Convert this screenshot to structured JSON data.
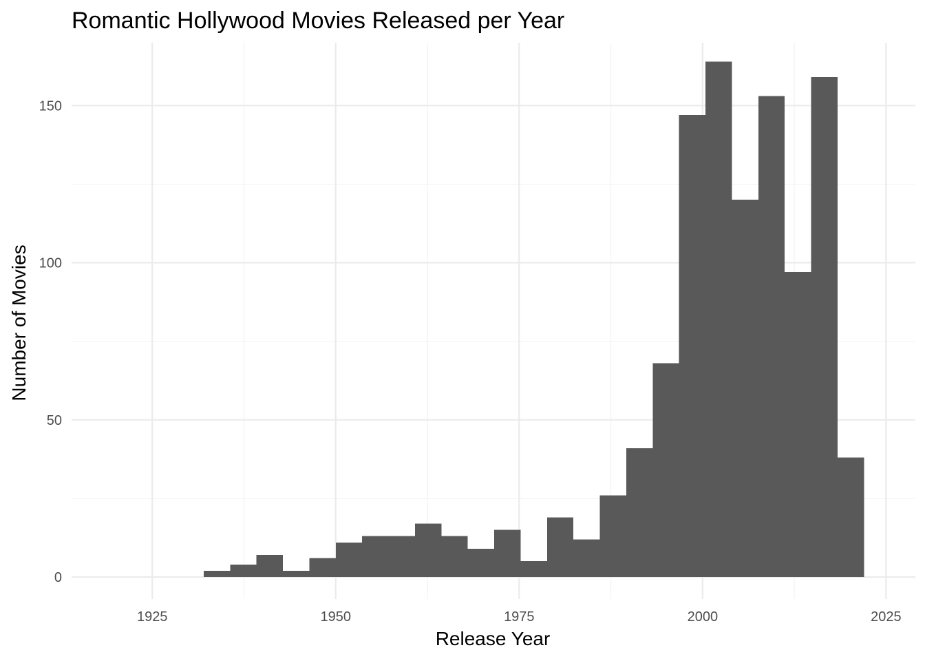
{
  "chart_data": {
    "type": "bar",
    "subtype": "histogram",
    "title": "Romantic Hollywood Movies Released per Year",
    "xlabel": "Release Year",
    "ylabel": "Number of Movies",
    "xlim": [
      1914,
      2029
    ],
    "ylim": [
      -7,
      170
    ],
    "x_ticks": [
      1925,
      1950,
      1975,
      2000,
      2025
    ],
    "y_ticks": [
      0,
      50,
      100,
      150
    ],
    "bin_width": 3.6,
    "bar_color": "#595959",
    "grid": true,
    "bins": [
      {
        "start": 1932.0,
        "end": 1935.6,
        "count": 2
      },
      {
        "start": 1935.6,
        "end": 1939.2,
        "count": 4
      },
      {
        "start": 1939.2,
        "end": 1942.8,
        "count": 7
      },
      {
        "start": 1942.8,
        "end": 1946.4,
        "count": 2
      },
      {
        "start": 1946.4,
        "end": 1950.0,
        "count": 6
      },
      {
        "start": 1950.0,
        "end": 1953.6,
        "count": 11
      },
      {
        "start": 1953.6,
        "end": 1957.2,
        "count": 13
      },
      {
        "start": 1957.2,
        "end": 1960.8,
        "count": 13
      },
      {
        "start": 1960.8,
        "end": 1964.4,
        "count": 17
      },
      {
        "start": 1964.4,
        "end": 1968.0,
        "count": 13
      },
      {
        "start": 1968.0,
        "end": 1971.6,
        "count": 9
      },
      {
        "start": 1971.6,
        "end": 1975.2,
        "count": 15
      },
      {
        "start": 1975.2,
        "end": 1978.8,
        "count": 5
      },
      {
        "start": 1978.8,
        "end": 1982.4,
        "count": 19
      },
      {
        "start": 1982.4,
        "end": 1986.0,
        "count": 12
      },
      {
        "start": 1986.0,
        "end": 1989.6,
        "count": 26
      },
      {
        "start": 1989.6,
        "end": 1993.2,
        "count": 41
      },
      {
        "start": 1993.2,
        "end": 1996.8,
        "count": 68
      },
      {
        "start": 1996.8,
        "end": 2000.4,
        "count": 147
      },
      {
        "start": 2000.4,
        "end": 2004.0,
        "count": 164
      },
      {
        "start": 2004.0,
        "end": 2007.6,
        "count": 120
      },
      {
        "start": 2007.6,
        "end": 2011.2,
        "count": 153
      },
      {
        "start": 2011.2,
        "end": 2014.8,
        "count": 97
      },
      {
        "start": 2014.8,
        "end": 2018.4,
        "count": 159
      },
      {
        "start": 2018.4,
        "end": 2022.0,
        "count": 38
      }
    ]
  }
}
